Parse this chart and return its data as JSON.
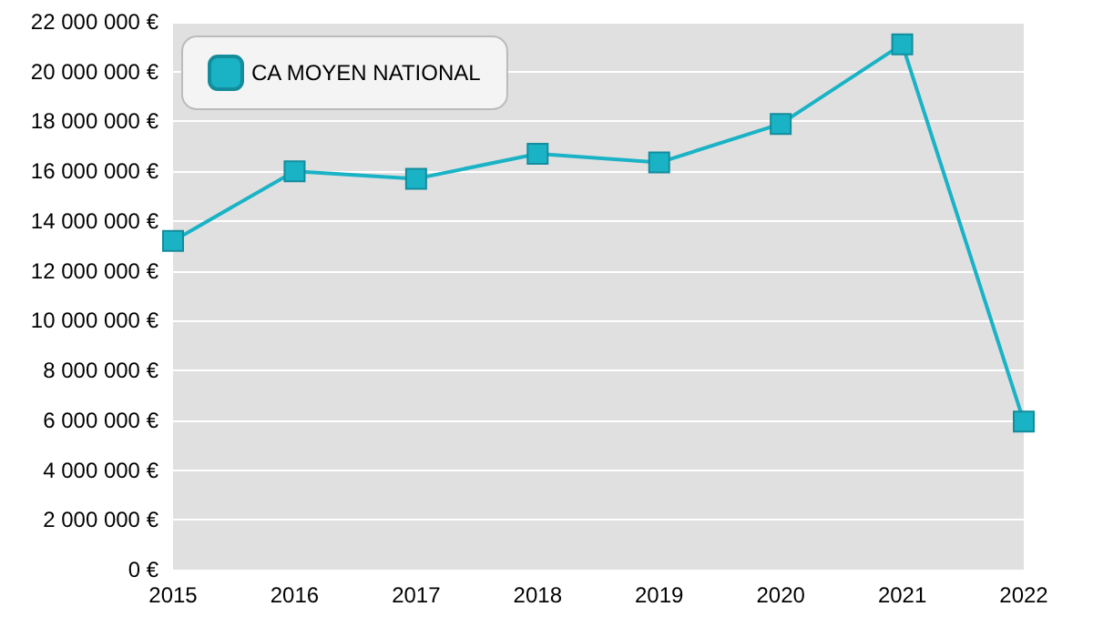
{
  "chart_data": {
    "type": "line",
    "categories": [
      "2015",
      "2016",
      "2017",
      "2018",
      "2019",
      "2020",
      "2021",
      "2022"
    ],
    "series": [
      {
        "name": "CA MOYEN NATIONAL",
        "color": "#1ab3c6",
        "values": [
          13200000,
          16000000,
          15700000,
          16700000,
          16350000,
          17900000,
          21100000,
          5950000
        ]
      }
    ],
    "ylim": [
      0,
      22000000
    ],
    "yticks": [
      {
        "value": 0,
        "label": "0 €"
      },
      {
        "value": 2000000,
        "label": "2 000 000 €"
      },
      {
        "value": 4000000,
        "label": "4 000 000 €"
      },
      {
        "value": 6000000,
        "label": "6 000 000 €"
      },
      {
        "value": 8000000,
        "label": "8 000 000 €"
      },
      {
        "value": 10000000,
        "label": "10 000 000 €"
      },
      {
        "value": 12000000,
        "label": "12 000 000 €"
      },
      {
        "value": 14000000,
        "label": "14 000 000 €"
      },
      {
        "value": 16000000,
        "label": "16 000 000 €"
      },
      {
        "value": 18000000,
        "label": "18 000 000 €"
      },
      {
        "value": 20000000,
        "label": "20 000 000 €"
      },
      {
        "value": 22000000,
        "label": "22 000 000 €"
      }
    ],
    "grid": "y",
    "legend": "top left",
    "marker": "square",
    "line_style": "solid"
  }
}
